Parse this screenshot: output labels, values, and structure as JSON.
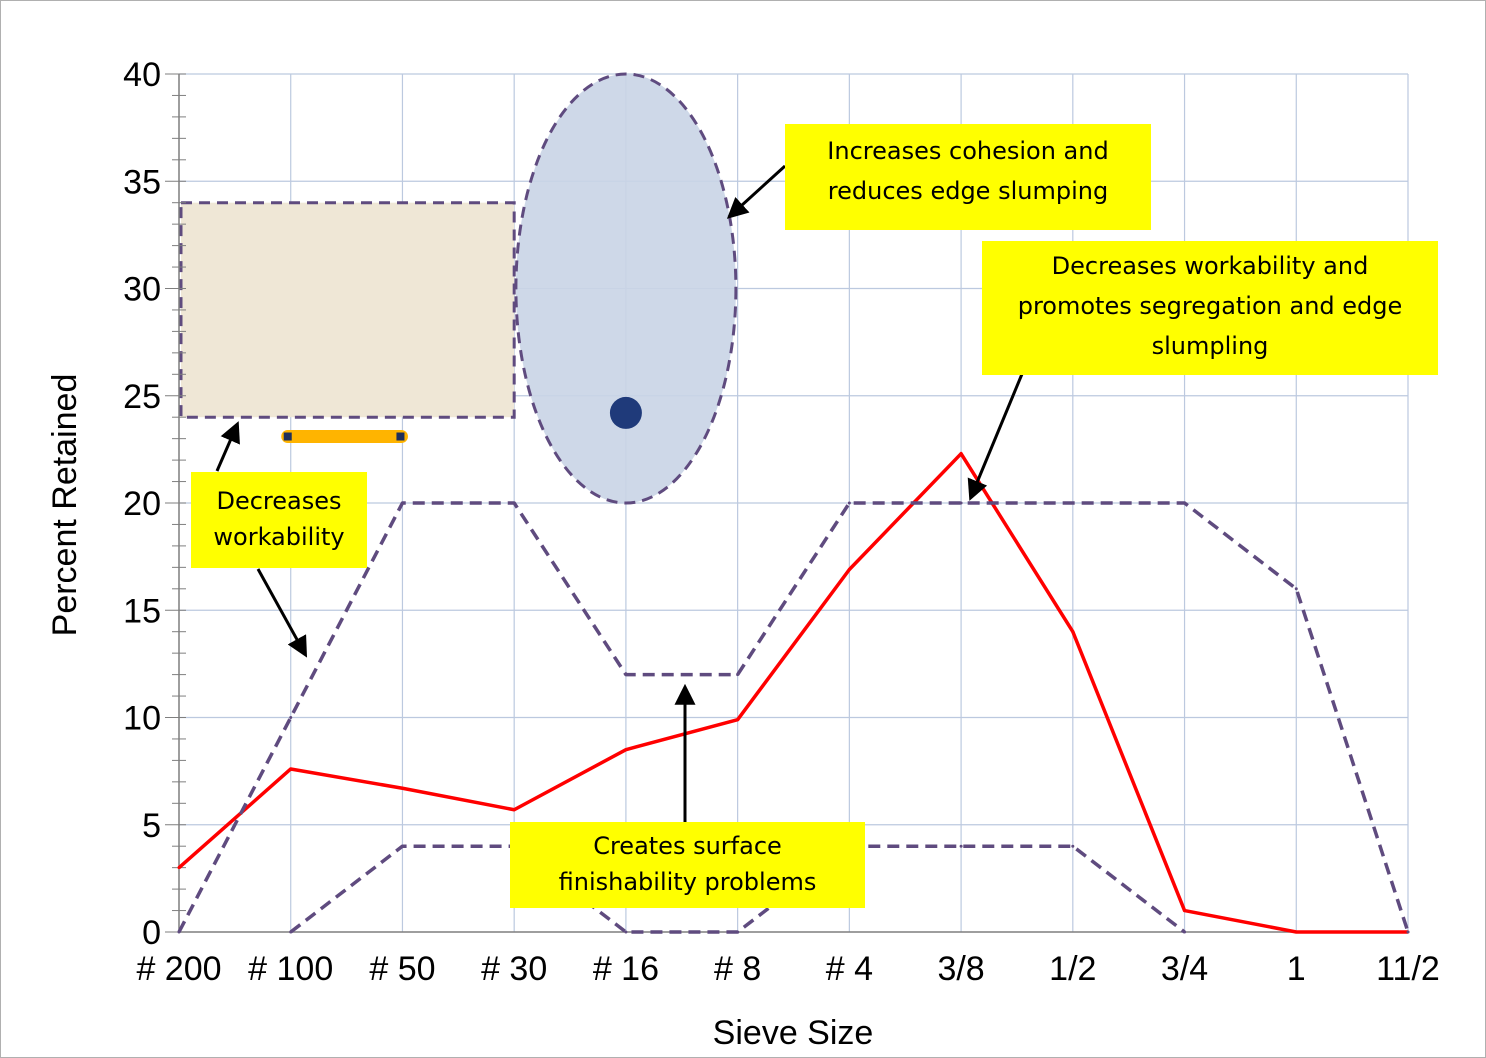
{
  "chart_data": {
    "type": "line",
    "xlabel": "Sieve Size",
    "ylabel": "Percent Retained",
    "categories": [
      "# 200",
      "# 100",
      "# 50",
      "# 30",
      "# 16",
      "# 8",
      "# 4",
      "3/8",
      "1/2",
      "3/4",
      "1",
      "11/2"
    ],
    "ylim": [
      0,
      40
    ],
    "yticks": [
      0,
      5,
      10,
      15,
      20,
      25,
      30,
      35,
      40
    ],
    "grid": true,
    "series": [
      {
        "role": "gradation",
        "style": "solid",
        "color": "#ff0000",
        "values": [
          3,
          7.6,
          6.7,
          5.7,
          8.5,
          9.9,
          16.9,
          22.3,
          14,
          1,
          0,
          0
        ]
      },
      {
        "role": "upper-limit",
        "style": "dashed",
        "color": "#5f4b7f",
        "values": [
          0,
          10,
          20,
          20,
          12,
          12,
          20,
          20,
          20,
          20,
          16,
          0
        ]
      },
      {
        "role": "lower-limit",
        "style": "dashed",
        "color": "#5f4b7f",
        "values": [
          null,
          0,
          4,
          4,
          0,
          0,
          4,
          4,
          4,
          0,
          null,
          null
        ]
      }
    ],
    "annotations": [
      {
        "id": "cohesion",
        "lines": [
          "Increases cohesion and",
          "reduces edge slumping"
        ]
      },
      {
        "id": "segregation",
        "lines": [
          "Decreases workability and",
          "promotes segregation and edge",
          "slumpling"
        ]
      },
      {
        "id": "workability",
        "lines": [
          "Decreases",
          "workability"
        ]
      },
      {
        "id": "finishability",
        "lines": [
          "Creates surface",
          "finishability problems"
        ]
      }
    ],
    "colors": {
      "callout_bg": "#ffff00",
      "zone_rect": "#efe7d6",
      "zone_ellipse": "#c9d4e6",
      "marker": "#1f3a7a",
      "handle": "#ffb400"
    }
  }
}
